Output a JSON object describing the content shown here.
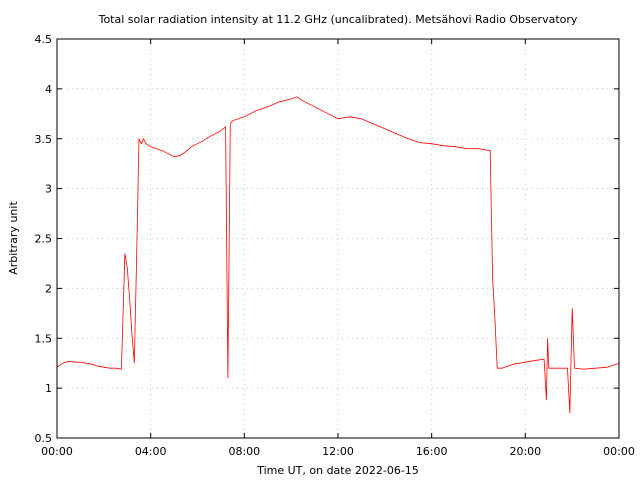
{
  "chart_data": {
    "type": "line",
    "title": "Total solar radiation intensity at 11.2 GHz (uncalibrated). Metsähovi Radio Observatory",
    "xlabel": "Time UT, on date 2022-06-15",
    "ylabel": "Arbitrary unit",
    "xlim": [
      0,
      24
    ],
    "ylim": [
      0.5,
      4.5
    ],
    "x_ticks": [
      0,
      4,
      8,
      12,
      16,
      20,
      24
    ],
    "x_tick_labels": [
      "00:00",
      "04:00",
      "08:00",
      "12:00",
      "16:00",
      "20:00",
      "00:00"
    ],
    "y_ticks": [
      0.5,
      1,
      1.5,
      2,
      2.5,
      3,
      3.5,
      4,
      4.5
    ],
    "y_tick_labels": [
      "0.5",
      "1",
      "1.5",
      "2",
      "2.5",
      "3",
      "3.5",
      "4",
      "4.5"
    ],
    "grid": true,
    "line_color": "#ff0000",
    "series": [
      {
        "x": [
          0.0,
          0.25,
          0.5,
          0.75,
          1.0,
          1.25,
          1.5,
          1.75,
          2.0,
          2.25,
          2.5,
          2.75,
          2.9,
          3.0,
          3.1,
          3.2,
          3.3,
          3.4,
          3.5,
          3.6,
          3.7,
          3.8,
          4.0,
          4.25,
          4.5,
          4.75,
          5.0,
          5.25,
          5.5,
          5.75,
          6.0,
          6.25,
          6.5,
          6.75,
          7.0,
          7.2,
          7.3,
          7.4,
          7.5,
          8.0,
          8.5,
          9.0,
          9.5,
          10.0,
          10.25,
          10.5,
          11.0,
          11.5,
          12.0,
          12.5,
          13.0,
          13.5,
          14.0,
          14.5,
          15.0,
          15.5,
          16.0,
          16.5,
          17.0,
          17.5,
          18.0,
          18.5,
          18.6,
          18.7,
          18.8,
          19.0,
          19.5,
          20.0,
          20.5,
          20.8,
          20.9,
          20.95,
          21.0,
          21.5,
          21.8,
          21.9,
          22.0,
          22.1,
          22.5,
          23.0,
          23.5,
          24.0
        ],
        "y": [
          1.21,
          1.25,
          1.27,
          1.26,
          1.26,
          1.25,
          1.24,
          1.22,
          1.21,
          1.2,
          1.2,
          1.19,
          2.35,
          2.2,
          1.9,
          1.55,
          1.25,
          2.3,
          3.5,
          3.45,
          3.5,
          3.45,
          3.42,
          3.4,
          3.38,
          3.35,
          3.32,
          3.33,
          3.37,
          3.42,
          3.45,
          3.48,
          3.52,
          3.55,
          3.58,
          3.62,
          1.1,
          3.65,
          3.68,
          3.72,
          3.78,
          3.82,
          3.87,
          3.9,
          3.92,
          3.88,
          3.82,
          3.76,
          3.7,
          3.72,
          3.7,
          3.65,
          3.6,
          3.55,
          3.5,
          3.46,
          3.45,
          3.43,
          3.42,
          3.4,
          3.4,
          3.38,
          2.1,
          1.7,
          1.2,
          1.2,
          1.24,
          1.26,
          1.28,
          1.29,
          0.88,
          1.5,
          1.2,
          1.2,
          1.2,
          0.75,
          1.8,
          1.2,
          1.19,
          1.2,
          1.21,
          1.25
        ]
      }
    ]
  }
}
